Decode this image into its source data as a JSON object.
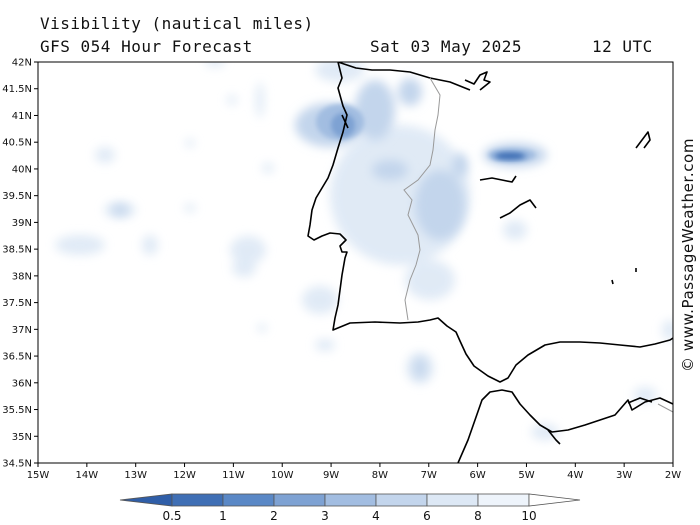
{
  "header": {
    "title": "Visibility (nautical miles)",
    "subtitle": "GFS 054 Hour Forecast",
    "date": "Sat 03 May 2025",
    "time": "12 UTC"
  },
  "credit": "© www.PassageWeather.com",
  "map": {
    "lat_labels": [
      "42N",
      "41.5N",
      "41N",
      "40.5N",
      "40N",
      "39.5N",
      "39N",
      "38.5N",
      "38N",
      "37.5N",
      "37N",
      "36.5N",
      "36N",
      "35.5N",
      "35N",
      "34.5N"
    ],
    "lon_labels": [
      "15W",
      "14W",
      "13W",
      "12W",
      "11W",
      "10W",
      "9W",
      "8W",
      "7W",
      "6W",
      "5W",
      "4W",
      "3W",
      "2W"
    ]
  },
  "colorbar": {
    "labels": [
      "0.5",
      "1",
      "2",
      "3",
      "4",
      "6",
      "8",
      "10"
    ],
    "colors": [
      "#3f6fb5",
      "#5a88c6",
      "#7ea2d3",
      "#a2bde1",
      "#c3d5ec",
      "#dde8f5",
      "#eef4fb",
      "#ffffff"
    ]
  }
}
